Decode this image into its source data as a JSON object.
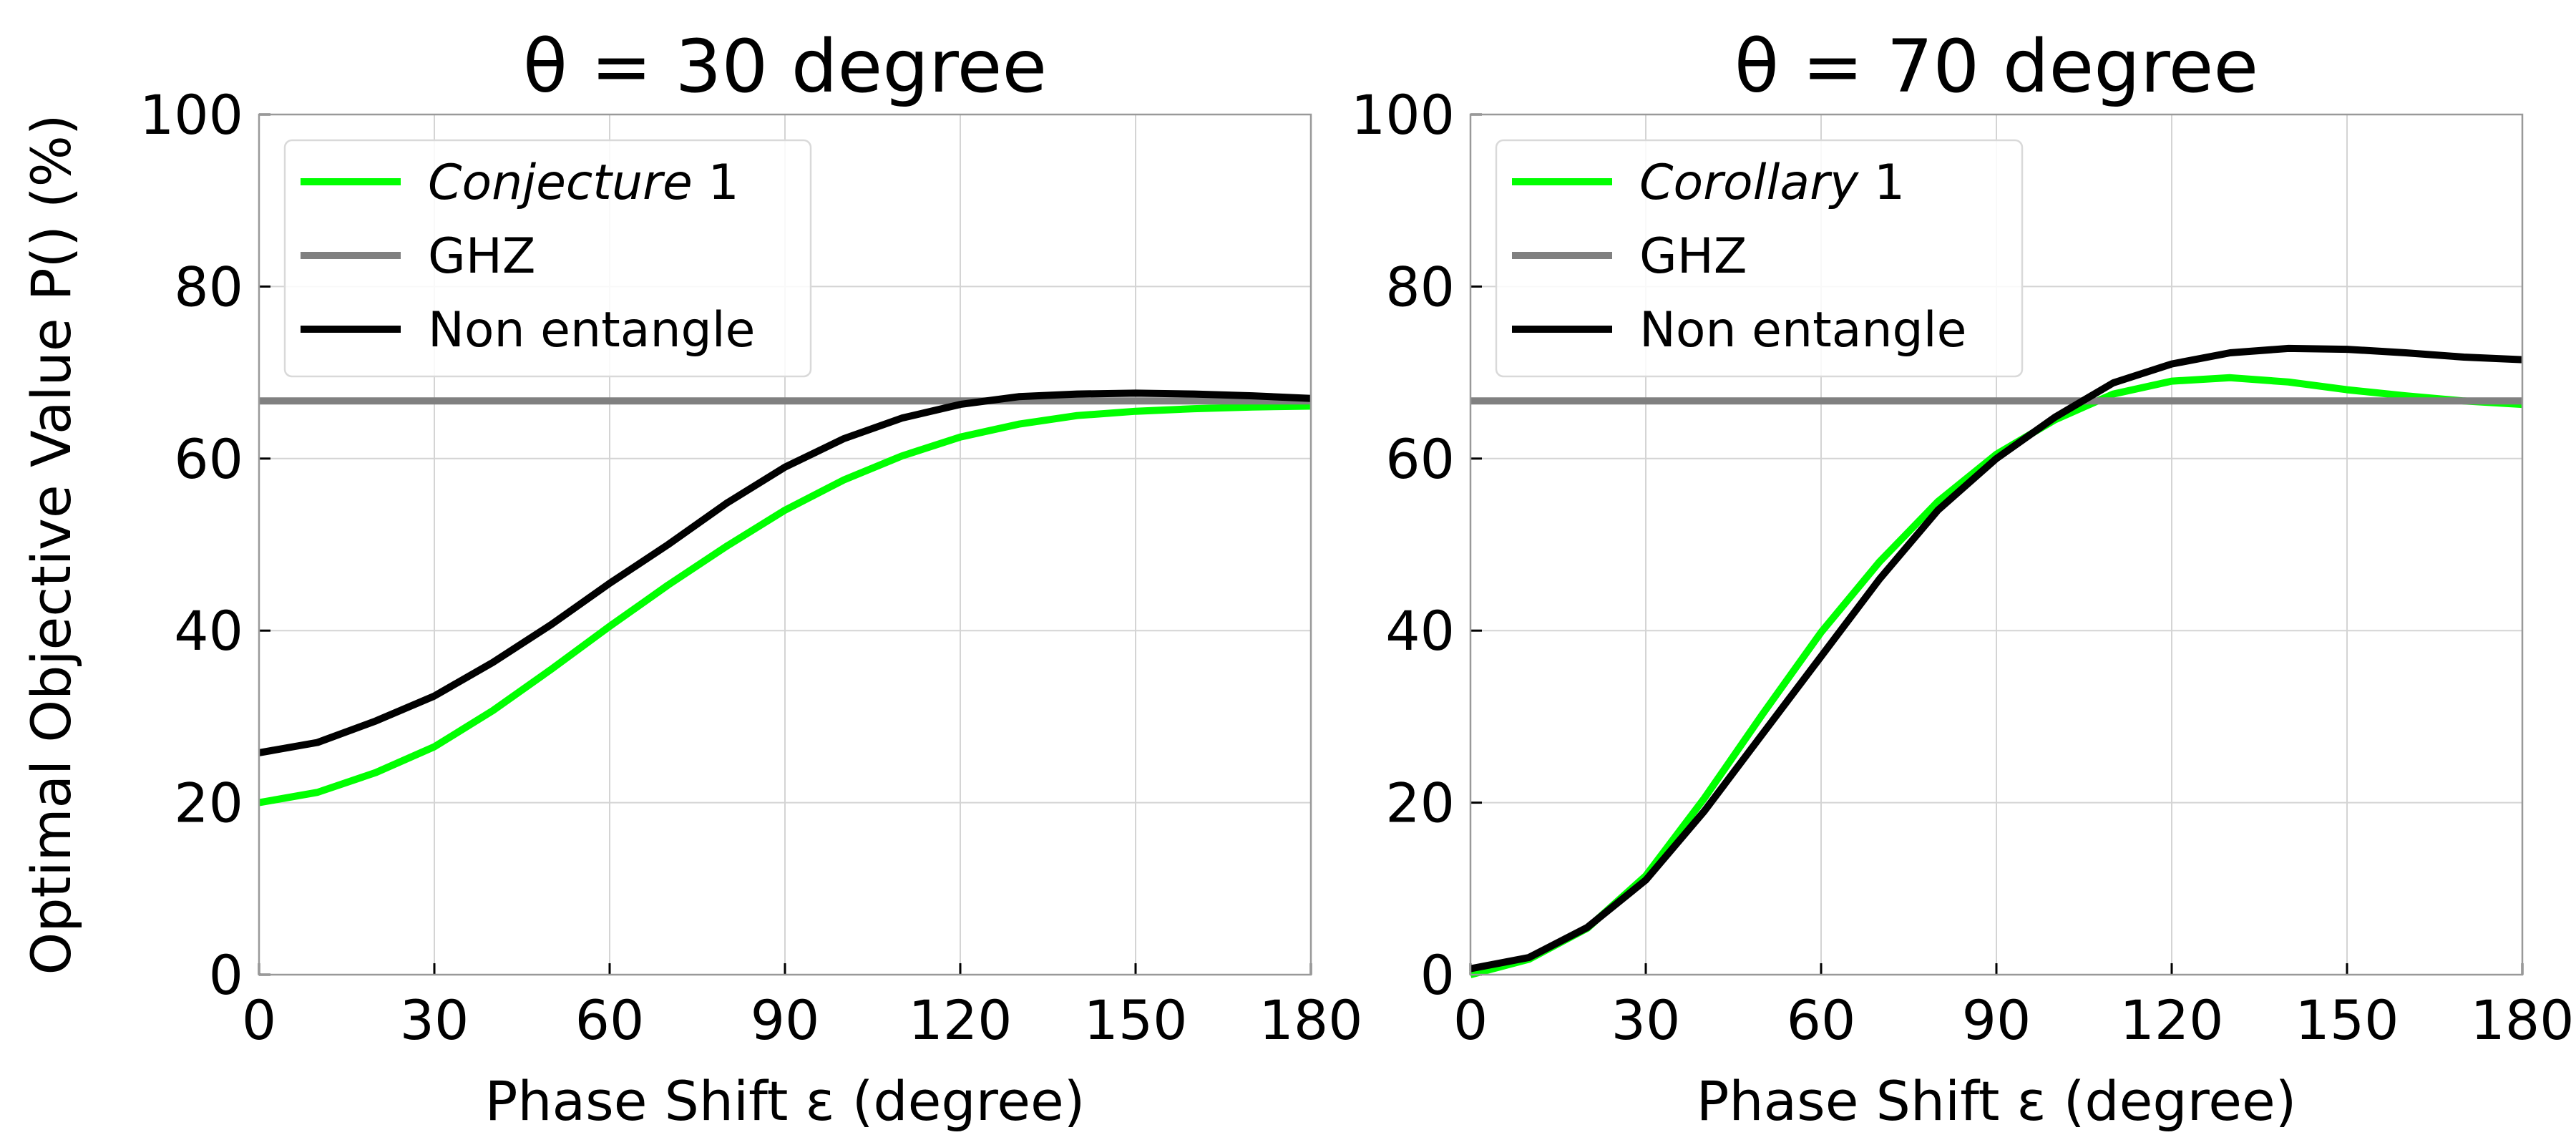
{
  "chart_data": [
    {
      "type": "line",
      "title": "θ = 30 degree",
      "xlabel": "Phase Shift ε (degree)",
      "ylabel": "Optimal Objective Value P() (%)",
      "xlim": [
        0,
        180
      ],
      "ylim": [
        0,
        100
      ],
      "xticks": [
        "0",
        "30",
        "60",
        "90",
        "120",
        "150",
        "180"
      ],
      "yticks": [
        "0",
        "20",
        "40",
        "60",
        "80",
        "100"
      ],
      "grid": true,
      "legend_position": "top-left",
      "series": [
        {
          "name": "Conjecture 1",
          "name_italic": "Conjecture",
          "name_rest": " 1",
          "color": "#00ff00",
          "x": [
            0,
            10,
            20,
            30,
            40,
            50,
            60,
            70,
            80,
            90,
            100,
            110,
            120,
            130,
            140,
            150,
            160,
            170,
            180
          ],
          "y": [
            20,
            21.2,
            23.5,
            26.5,
            30.7,
            35.5,
            40.5,
            45.3,
            49.8,
            54.0,
            57.5,
            60.3,
            62.5,
            64.0,
            65.0,
            65.5,
            65.8,
            66.0,
            66.1
          ]
        },
        {
          "name": "GHZ",
          "name_italic": "",
          "name_rest": "GHZ",
          "color": "#808080",
          "x": [
            0,
            180
          ],
          "y": [
            66.7,
            66.7
          ]
        },
        {
          "name": "Non entangle",
          "name_italic": "",
          "name_rest": "Non entangle",
          "color": "#000000",
          "x": [
            0,
            10,
            20,
            30,
            40,
            50,
            60,
            70,
            80,
            90,
            100,
            110,
            120,
            130,
            140,
            150,
            160,
            170,
            180
          ],
          "y": [
            25.8,
            27.0,
            29.5,
            32.4,
            36.3,
            40.7,
            45.5,
            50.0,
            54.8,
            59.0,
            62.3,
            64.7,
            66.3,
            67.2,
            67.5,
            67.6,
            67.5,
            67.3,
            67.0
          ]
        }
      ]
    },
    {
      "type": "line",
      "title": "θ = 70 degree",
      "xlabel": "Phase Shift ε (degree)",
      "ylabel": "",
      "xlim": [
        0,
        180
      ],
      "ylim": [
        0,
        100
      ],
      "xticks": [
        "0",
        "30",
        "60",
        "90",
        "120",
        "150",
        "180"
      ],
      "yticks": [
        "0",
        "20",
        "40",
        "60",
        "80",
        "100"
      ],
      "grid": true,
      "legend_position": "top-left",
      "series": [
        {
          "name": "Corollary 1",
          "name_italic": "Corollary",
          "name_rest": " 1",
          "color": "#00ff00",
          "x": [
            0,
            10,
            20,
            30,
            40,
            50,
            60,
            70,
            80,
            90,
            100,
            110,
            120,
            130,
            140,
            150,
            160,
            170,
            180
          ],
          "y": [
            0,
            1.8,
            5.4,
            11.5,
            20.5,
            30.3,
            39.8,
            48.0,
            55.0,
            60.5,
            64.5,
            67.5,
            69.0,
            69.4,
            68.9,
            68.0,
            67.3,
            66.7,
            66.3
          ]
        },
        {
          "name": "GHZ",
          "name_italic": "",
          "name_rest": "GHZ",
          "color": "#808080",
          "x": [
            0,
            180
          ],
          "y": [
            66.7,
            66.7
          ]
        },
        {
          "name": "Non entangle",
          "name_italic": "",
          "name_rest": "Non entangle",
          "color": "#000000",
          "x": [
            0,
            10,
            20,
            30,
            40,
            50,
            60,
            70,
            80,
            90,
            100,
            110,
            120,
            130,
            140,
            150,
            160,
            170,
            180
          ],
          "y": [
            0.7,
            2.0,
            5.5,
            11.0,
            19.0,
            28.0,
            37.0,
            46.0,
            54.0,
            60.0,
            64.8,
            68.8,
            71.0,
            72.3,
            72.8,
            72.7,
            72.3,
            71.8,
            71.5
          ]
        }
      ]
    }
  ]
}
